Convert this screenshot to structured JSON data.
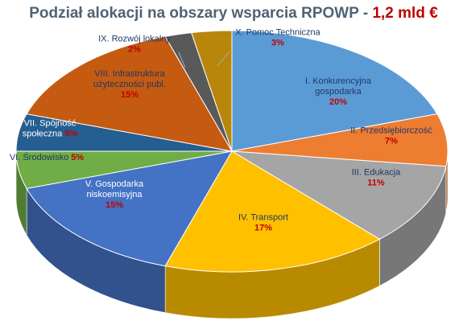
{
  "title": {
    "main": "Podział alokacji na obszary wsparcia RPOWP - ",
    "highlight": "1,2 mld €"
  },
  "chart_data": {
    "type": "pie",
    "style": "3d",
    "legend": "none",
    "slices": [
      {
        "name": "I. Konkurencyjna gospodarka",
        "lines": [
          "I. Konkurencyjna",
          "gospodarka"
        ],
        "value": 20,
        "label": "20%",
        "color": "#5b9bd5",
        "text_color": "#1f3864",
        "pct_inline": false
      },
      {
        "name": "II. Przedsiębiorczość",
        "lines": [
          "II. Przedsiębiorczość"
        ],
        "value": 7,
        "label": "7%",
        "color": "#ed7d31",
        "text_color": "#1f3864",
        "pct_inline": false
      },
      {
        "name": "III. Edukacja",
        "lines": [
          "III. Edukacja"
        ],
        "value": 11,
        "label": "11%",
        "color": "#a5a5a5",
        "text_color": "#1f3864",
        "pct_inline": false
      },
      {
        "name": "IV. Transport",
        "lines": [
          "IV. Transport"
        ],
        "value": 17,
        "label": "17%",
        "color": "#ffc000",
        "text_color": "#1f3864",
        "pct_inline": false
      },
      {
        "name": "V. Gospodarka niskoemisyjna",
        "lines": [
          "V. Gospodarka",
          "niskoemisyjna"
        ],
        "value": 15,
        "label": "15%",
        "color": "#4472c4",
        "text_color": "#ffffff",
        "pct_inline": false
      },
      {
        "name": "VI. Środowisko",
        "lines": [
          "VI. Środowisko"
        ],
        "value": 5,
        "label": "5%",
        "color": "#70ad47",
        "text_color": "#1f3864",
        "pct_inline": true
      },
      {
        "name": "VII. Spójność społeczna",
        "lines": [
          "VII. Spójność",
          "społeczna"
        ],
        "value": 5,
        "label": "5%",
        "color": "#255e91",
        "text_color": "#ffffff",
        "pct_inline": true
      },
      {
        "name": "VIII. Infrastruktura użyteczności publ.",
        "lines": [
          "VIII. Infrastruktura",
          "użyteczności publ."
        ],
        "value": 15,
        "label": "15%",
        "color": "#c55a11",
        "text_color": "#1f3864",
        "pct_inline": false
      },
      {
        "name": "IX. Rozwój lokalny",
        "lines": [
          "IX. Rozwój lokalny"
        ],
        "value": 2,
        "label": "2%",
        "color": "#595959",
        "text_color": "#1f3864",
        "pct_inline": false
      },
      {
        "name": "X. Pomoc Techniczna",
        "lines": [
          "X. Pomoc Techniczna"
        ],
        "value": 3,
        "label": "3%",
        "color": "#b8860b",
        "text_color": "#1f3864",
        "pct_inline": false
      }
    ]
  }
}
